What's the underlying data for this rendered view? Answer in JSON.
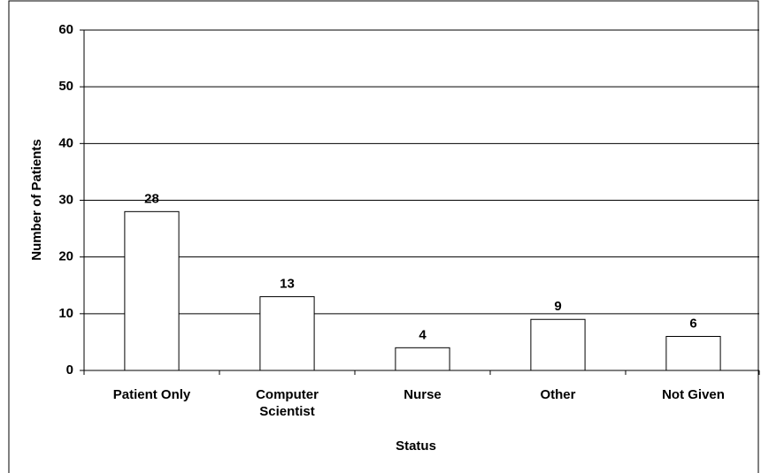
{
  "chart_data": {
    "type": "bar",
    "categories": [
      "Patient Only",
      "Computer Scientist",
      "Nurse",
      "Other",
      "Not Given"
    ],
    "values": [
      28,
      13,
      4,
      9,
      6
    ],
    "color": "#ffffff",
    "xlabel": "Status",
    "ylabel": "Number of Patients",
    "ylim": [
      0,
      60
    ],
    "yticks": [
      0,
      10,
      20,
      30,
      40,
      50,
      60
    ],
    "grid": true
  }
}
